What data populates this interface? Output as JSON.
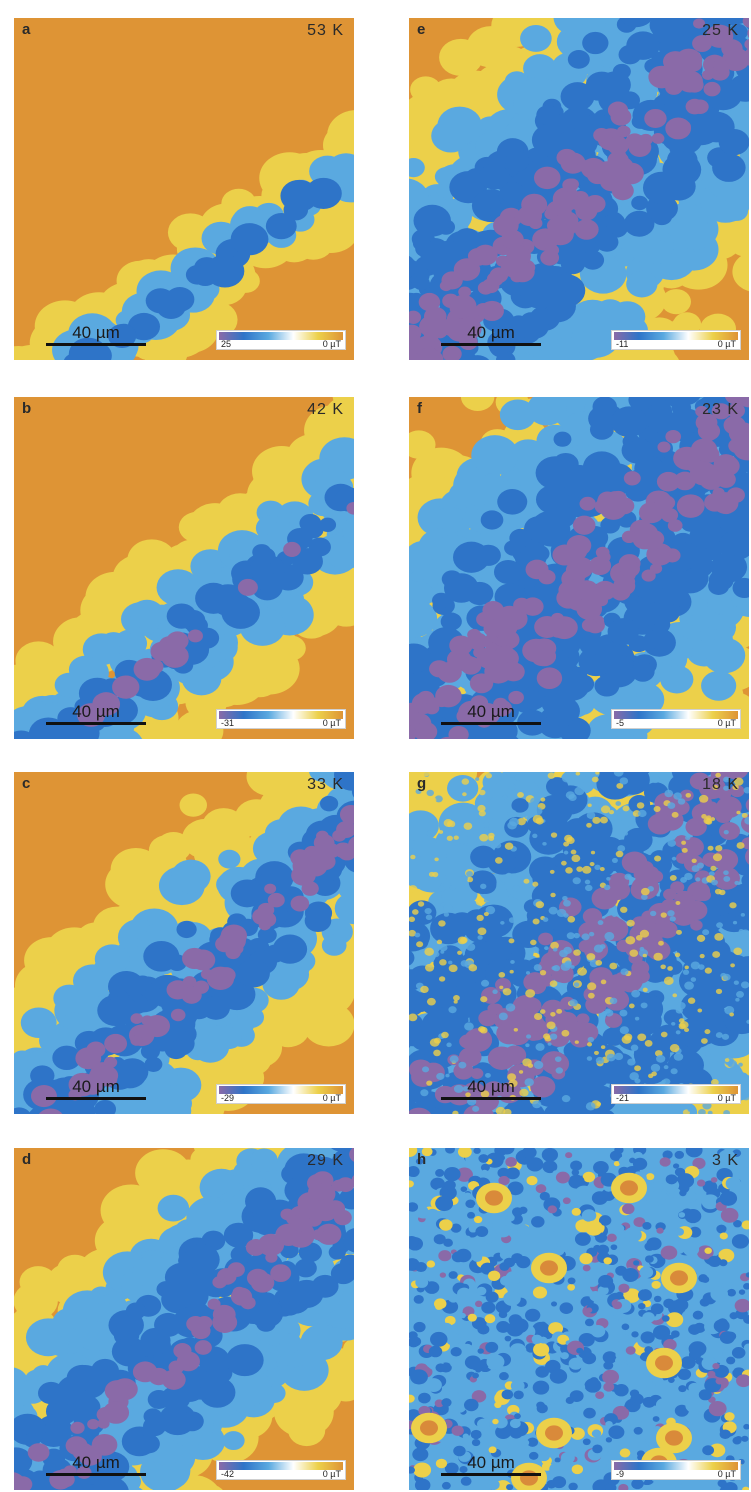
{
  "panels": [
    {
      "id": "a",
      "label": "a",
      "temperature": "53 K",
      "scale": "40 µm",
      "cbar_min": "25",
      "cbar_max": "0 µT",
      "variant": "a"
    },
    {
      "id": "b",
      "label": "b",
      "temperature": "42 K",
      "scale": "40 µm",
      "cbar_min": "-31",
      "cbar_max": "0 µT",
      "variant": "b"
    },
    {
      "id": "c",
      "label": "c",
      "temperature": "33 K",
      "scale": "40 µm",
      "cbar_min": "-29",
      "cbar_max": "0 µT",
      "variant": "c"
    },
    {
      "id": "d",
      "label": "d",
      "temperature": "29 K",
      "scale": "40 µm",
      "cbar_min": "-42",
      "cbar_max": "0 µT",
      "variant": "d"
    },
    {
      "id": "e",
      "label": "e",
      "temperature": "25 K",
      "scale": "40 µm",
      "cbar_min": "-11",
      "cbar_max": "0 µT",
      "variant": "e"
    },
    {
      "id": "f",
      "label": "f",
      "temperature": "23 K",
      "scale": "40 µm",
      "cbar_min": "-5",
      "cbar_max": "0 µT",
      "variant": "f"
    },
    {
      "id": "g",
      "label": "g",
      "temperature": "18 K",
      "scale": "40 µm",
      "cbar_min": "-21",
      "cbar_max": "0 µT",
      "variant": "g"
    },
    {
      "id": "h",
      "label": "h",
      "temperature": "3 K",
      "scale": "40 µm",
      "cbar_min": "-9",
      "cbar_max": "0 µT",
      "variant": "h"
    }
  ],
  "colors": {
    "background_orange": "#de9435",
    "yellow": "#ecd04a",
    "light_blue": "#5aa9e0",
    "blue": "#2e74c8",
    "purple": "#8a6aa8",
    "text": "#2a2a2a"
  }
}
